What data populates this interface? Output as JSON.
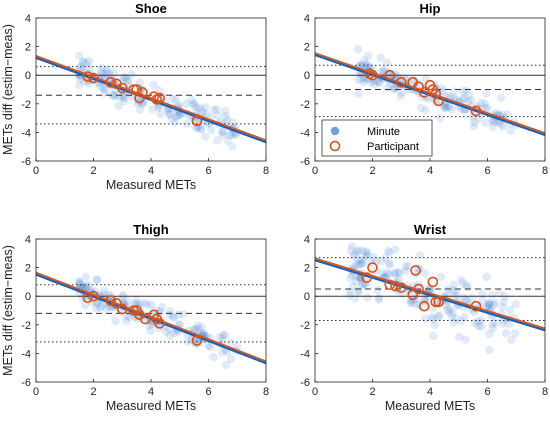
{
  "chart_data": [
    {
      "type": "scatter",
      "title": "Shoe",
      "xlabel": "Measured METs",
      "ylabel": "METs diff (estim−meas)",
      "xlim": [
        0,
        8
      ],
      "ylim": [
        -6,
        4
      ],
      "xticks": [
        "0",
        "2",
        "4",
        "6",
        "8"
      ],
      "yticks": [
        "-6",
        "-4",
        "-2",
        "0",
        "2",
        "4"
      ],
      "zero_line": 0,
      "mean_line": -1.4,
      "loa_upper": 0.6,
      "loa_lower": -3.4,
      "fit_line": {
        "x": [
          0,
          8
        ],
        "y": [
          1.3,
          -4.6
        ]
      },
      "participants": {
        "x": [
          1.8,
          2.0,
          2.6,
          2.8,
          3.0,
          3.4,
          3.5,
          3.6,
          3.7,
          4.1,
          4.2,
          4.3,
          5.6
        ],
        "y": [
          -0.1,
          -0.2,
          -0.5,
          -0.6,
          -0.9,
          -1.0,
          -1.0,
          -1.6,
          -1.2,
          -1.5,
          -1.7,
          -1.6,
          -3.2
        ]
      },
      "minute_cloud": {
        "x_range": [
          1.5,
          7.0
        ],
        "spread": 0.55,
        "count": 170
      },
      "grid": false
    },
    {
      "type": "scatter",
      "title": "Hip",
      "xlabel": "",
      "ylabel": "",
      "xlim": [
        0,
        8
      ],
      "ylim": [
        -6,
        4
      ],
      "xticks": [
        "0",
        "2",
        "4",
        "6",
        "8"
      ],
      "yticks": [
        "-6",
        "-4",
        "-2",
        "0",
        "2",
        "4"
      ],
      "zero_line": 0,
      "mean_line": -1.0,
      "loa_upper": 0.7,
      "loa_lower": -2.9,
      "fit_line": {
        "x": [
          0,
          8
        ],
        "y": [
          1.5,
          -4.1
        ]
      },
      "participants": {
        "x": [
          1.9,
          2.0,
          2.6,
          3.0,
          3.4,
          3.6,
          3.8,
          4.0,
          4.1,
          4.2,
          4.3,
          5.6
        ],
        "y": [
          0.1,
          0.0,
          0.0,
          -0.5,
          -0.5,
          -0.8,
          -1.2,
          -0.7,
          -1.0,
          -1.3,
          -1.8,
          -2.5
        ]
      },
      "minute_cloud": {
        "x_range": [
          1.5,
          7.0
        ],
        "spread": 0.5,
        "count": 160
      },
      "legend": {
        "position": "center-left",
        "entries": [
          "Minute",
          "Participant"
        ]
      },
      "grid": false
    },
    {
      "type": "scatter",
      "title": "Thigh",
      "xlabel": "Measured METs",
      "ylabel": "METs diff (estim−meas)",
      "xlim": [
        0,
        8
      ],
      "ylim": [
        -6,
        4
      ],
      "xticks": [
        "0",
        "2",
        "4",
        "6",
        "8"
      ],
      "yticks": [
        "-6",
        "-4",
        "-2",
        "0",
        "2",
        "4"
      ],
      "zero_line": 0,
      "mean_line": -1.2,
      "loa_upper": 0.8,
      "loa_lower": -3.2,
      "fit_line": {
        "x": [
          0,
          8
        ],
        "y": [
          1.6,
          -4.6
        ]
      },
      "participants": {
        "x": [
          1.8,
          2.0,
          2.6,
          2.8,
          3.0,
          3.4,
          3.5,
          3.6,
          3.8,
          4.1,
          4.2,
          4.3,
          5.6
        ],
        "y": [
          -0.1,
          0.0,
          -0.3,
          -0.5,
          -0.9,
          -1.0,
          -1.0,
          -1.3,
          -1.6,
          -1.3,
          -1.6,
          -1.9,
          -3.1
        ]
      },
      "minute_cloud": {
        "x_range": [
          1.5,
          7.0
        ],
        "spread": 0.5,
        "count": 170
      },
      "grid": false
    },
    {
      "type": "scatter",
      "title": "Wrist",
      "xlabel": "Measured METs",
      "ylabel": "",
      "xlim": [
        0,
        8
      ],
      "ylim": [
        -6,
        4
      ],
      "xticks": [
        "0",
        "2",
        "4",
        "6",
        "8"
      ],
      "yticks": [
        "-6",
        "-4",
        "-2",
        "0",
        "2",
        "4"
      ],
      "zero_line": 0,
      "mean_line": 0.5,
      "loa_upper": 2.7,
      "loa_lower": -1.7,
      "fit_line": {
        "x": [
          0,
          8
        ],
        "y": [
          2.6,
          -2.3
        ]
      },
      "participants": {
        "x": [
          1.8,
          2.0,
          2.6,
          2.8,
          3.0,
          3.4,
          3.5,
          3.6,
          3.8,
          4.1,
          4.2,
          4.3,
          5.6
        ],
        "y": [
          1.3,
          2.0,
          0.8,
          0.7,
          0.6,
          0.1,
          1.8,
          0.5,
          -0.7,
          1.0,
          -0.4,
          -0.4,
          -0.7
        ]
      },
      "minute_cloud": {
        "x_range": [
          1.2,
          7.0
        ],
        "spread": 1.0,
        "count": 200
      },
      "grid": false
    }
  ],
  "colors": {
    "minute": "#5b8fd6",
    "participant": "#d95319",
    "fit_blue": "#1f5fb0",
    "fit_red": "#d95319"
  }
}
